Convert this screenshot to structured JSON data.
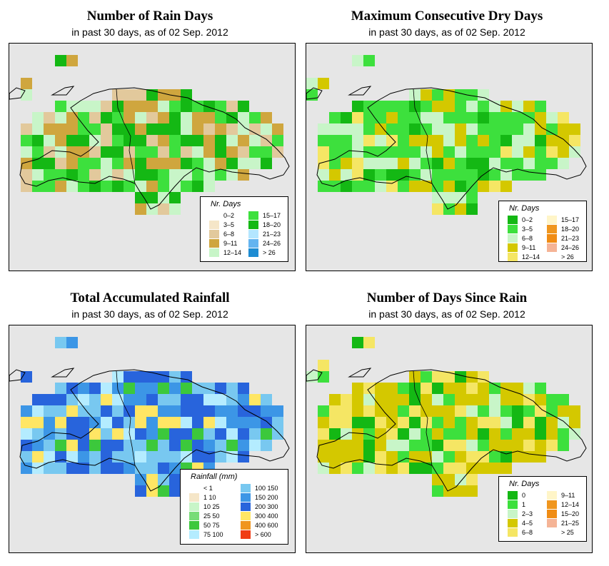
{
  "panels": [
    {
      "id": "rain-days",
      "title": "Number of Rain Days",
      "subtitle": "in past 30 days, as of  02 Sep. 2012",
      "legend": {
        "title": "Nr. Days",
        "items": [
          {
            "label": "0–2",
            "color": "#ffffff"
          },
          {
            "label": "3–5",
            "color": "#f5e6c8"
          },
          {
            "label": "6–8",
            "color": "#e2c99c"
          },
          {
            "label": "9–11",
            "color": "#cfa63e"
          },
          {
            "label": "12–14",
            "color": "#c8f5c8"
          },
          {
            "label": "15–17",
            "color": "#3de03d"
          },
          {
            "label": "18–20",
            "color": "#14b814"
          },
          {
            "label": "21–23",
            "color": "#b4e6ff"
          },
          {
            "label": "24–26",
            "color": "#64b4f0"
          },
          {
            "label": "> 26",
            "color": "#1e8cd2"
          }
        ]
      }
    },
    {
      "id": "max-dry-days",
      "title": "Maximum Consecutive Dry Days",
      "subtitle": "in past 30 days, as of  02 Sep. 2012",
      "legend": {
        "title": "Nr. Days",
        "items": [
          {
            "label": "0–2",
            "color": "#14b814"
          },
          {
            "label": "3–5",
            "color": "#3de03d"
          },
          {
            "label": "6–8",
            "color": "#c8f5c8"
          },
          {
            "label": "9–11",
            "color": "#d4c800"
          },
          {
            "label": "12–14",
            "color": "#f5e664"
          },
          {
            "label": "15–17",
            "color": "#fff5c8"
          },
          {
            "label": "18–20",
            "color": "#f0961e"
          },
          {
            "label": "21–23",
            "color": "#f08c14"
          },
          {
            "label": "24–26",
            "color": "#f5b496"
          },
          {
            "label": "> 26",
            "color": "#ffffff"
          }
        ]
      }
    },
    {
      "id": "total-rainfall",
      "title": "Total Accumulated Rainfall",
      "subtitle": "in past 30 days, as of  02 Sep. 2012",
      "legend": {
        "title": "Rainfall (mm)",
        "items": [
          {
            "label": "< 1",
            "color": "#ffffff"
          },
          {
            "label": "1    10",
            "color": "#f5e6c8"
          },
          {
            "label": "10    25",
            "color": "#c8f5c8"
          },
          {
            "label": "25    50",
            "color": "#78dc78"
          },
          {
            "label": "50    75",
            "color": "#3cc83c"
          },
          {
            "label": "75  100",
            "color": "#b4ecff"
          },
          {
            "label": "100  150",
            "color": "#78c8f0"
          },
          {
            "label": "150  200",
            "color": "#3c96e6"
          },
          {
            "label": "200  300",
            "color": "#2864dc"
          },
          {
            "label": "300  400",
            "color": "#ffe664"
          },
          {
            "label": "400  600",
            "color": "#f0961e"
          },
          {
            "label": "> 600",
            "color": "#f03c14"
          }
        ]
      }
    },
    {
      "id": "days-since-rain",
      "title": "Number of Days Since Rain",
      "subtitle": "in past 30 days, as of  02 Sep. 2012",
      "legend": {
        "title": "Nr. Days",
        "items": [
          {
            "label": "0",
            "color": "#14b814"
          },
          {
            "label": "1",
            "color": "#3de03d"
          },
          {
            "label": "2–3",
            "color": "#c8f5c8"
          },
          {
            "label": "4–5",
            "color": "#d4c800"
          },
          {
            "label": "6–8",
            "color": "#f5e664"
          },
          {
            "label": "9–11",
            "color": "#fff5c8"
          },
          {
            "label": "12–14",
            "color": "#f0961e"
          },
          {
            "label": "15–20",
            "color": "#f08c14"
          },
          {
            "label": "21–25",
            "color": "#f5b496"
          },
          {
            "label": "> 25",
            "color": "#ffffff"
          }
        ]
      }
    }
  ]
}
